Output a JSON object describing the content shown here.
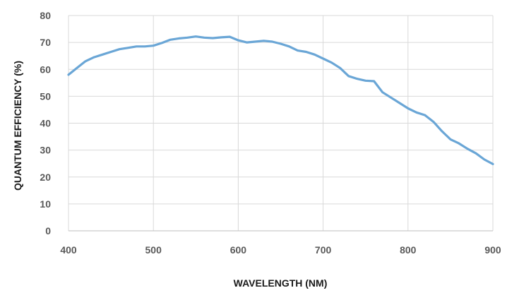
{
  "chart_data": {
    "type": "line",
    "title": "",
    "xlabel": "WAVELENGTH (NM)",
    "ylabel": "QUANTUM EFFICIENCY (%)",
    "xlim": [
      400,
      900
    ],
    "ylim": [
      0,
      80
    ],
    "x_ticks": [
      400,
      500,
      600,
      700,
      800,
      900
    ],
    "y_ticks": [
      0,
      10,
      20,
      30,
      40,
      50,
      60,
      70,
      80
    ],
    "grid": true,
    "legend": "none",
    "colors": {
      "series": "#6aa6d6",
      "grid": "#d9d9d9",
      "tick_text": "#595959",
      "axis_title": "#1a1a1a"
    },
    "series": [
      {
        "x": [
          400,
          410,
          420,
          430,
          440,
          450,
          460,
          470,
          480,
          490,
          500,
          510,
          520,
          530,
          540,
          550,
          560,
          570,
          580,
          590,
          600,
          610,
          620,
          630,
          640,
          650,
          660,
          670,
          680,
          690,
          700,
          710,
          720,
          730,
          740,
          750,
          760,
          770,
          780,
          790,
          800,
          810,
          820,
          830,
          840,
          850,
          860,
          870,
          880,
          890,
          900
        ],
        "y": [
          58,
          60.5,
          63,
          64.5,
          65.5,
          66.5,
          67.5,
          68,
          68.5,
          68.5,
          68.8,
          69.8,
          71,
          71.5,
          71.8,
          72.2,
          71.8,
          71.6,
          71.9,
          72.1,
          70.8,
          70,
          70.3,
          70.6,
          70.3,
          69.5,
          68.5,
          67,
          66.5,
          65.5,
          64,
          62.5,
          60.5,
          57.5,
          56.5,
          55.8,
          55.6,
          51.5,
          49.5,
          47.5,
          45.5,
          44,
          43,
          40.5,
          37,
          34,
          32.5,
          30.5,
          28.8,
          26.5,
          24.8
        ]
      }
    ]
  }
}
